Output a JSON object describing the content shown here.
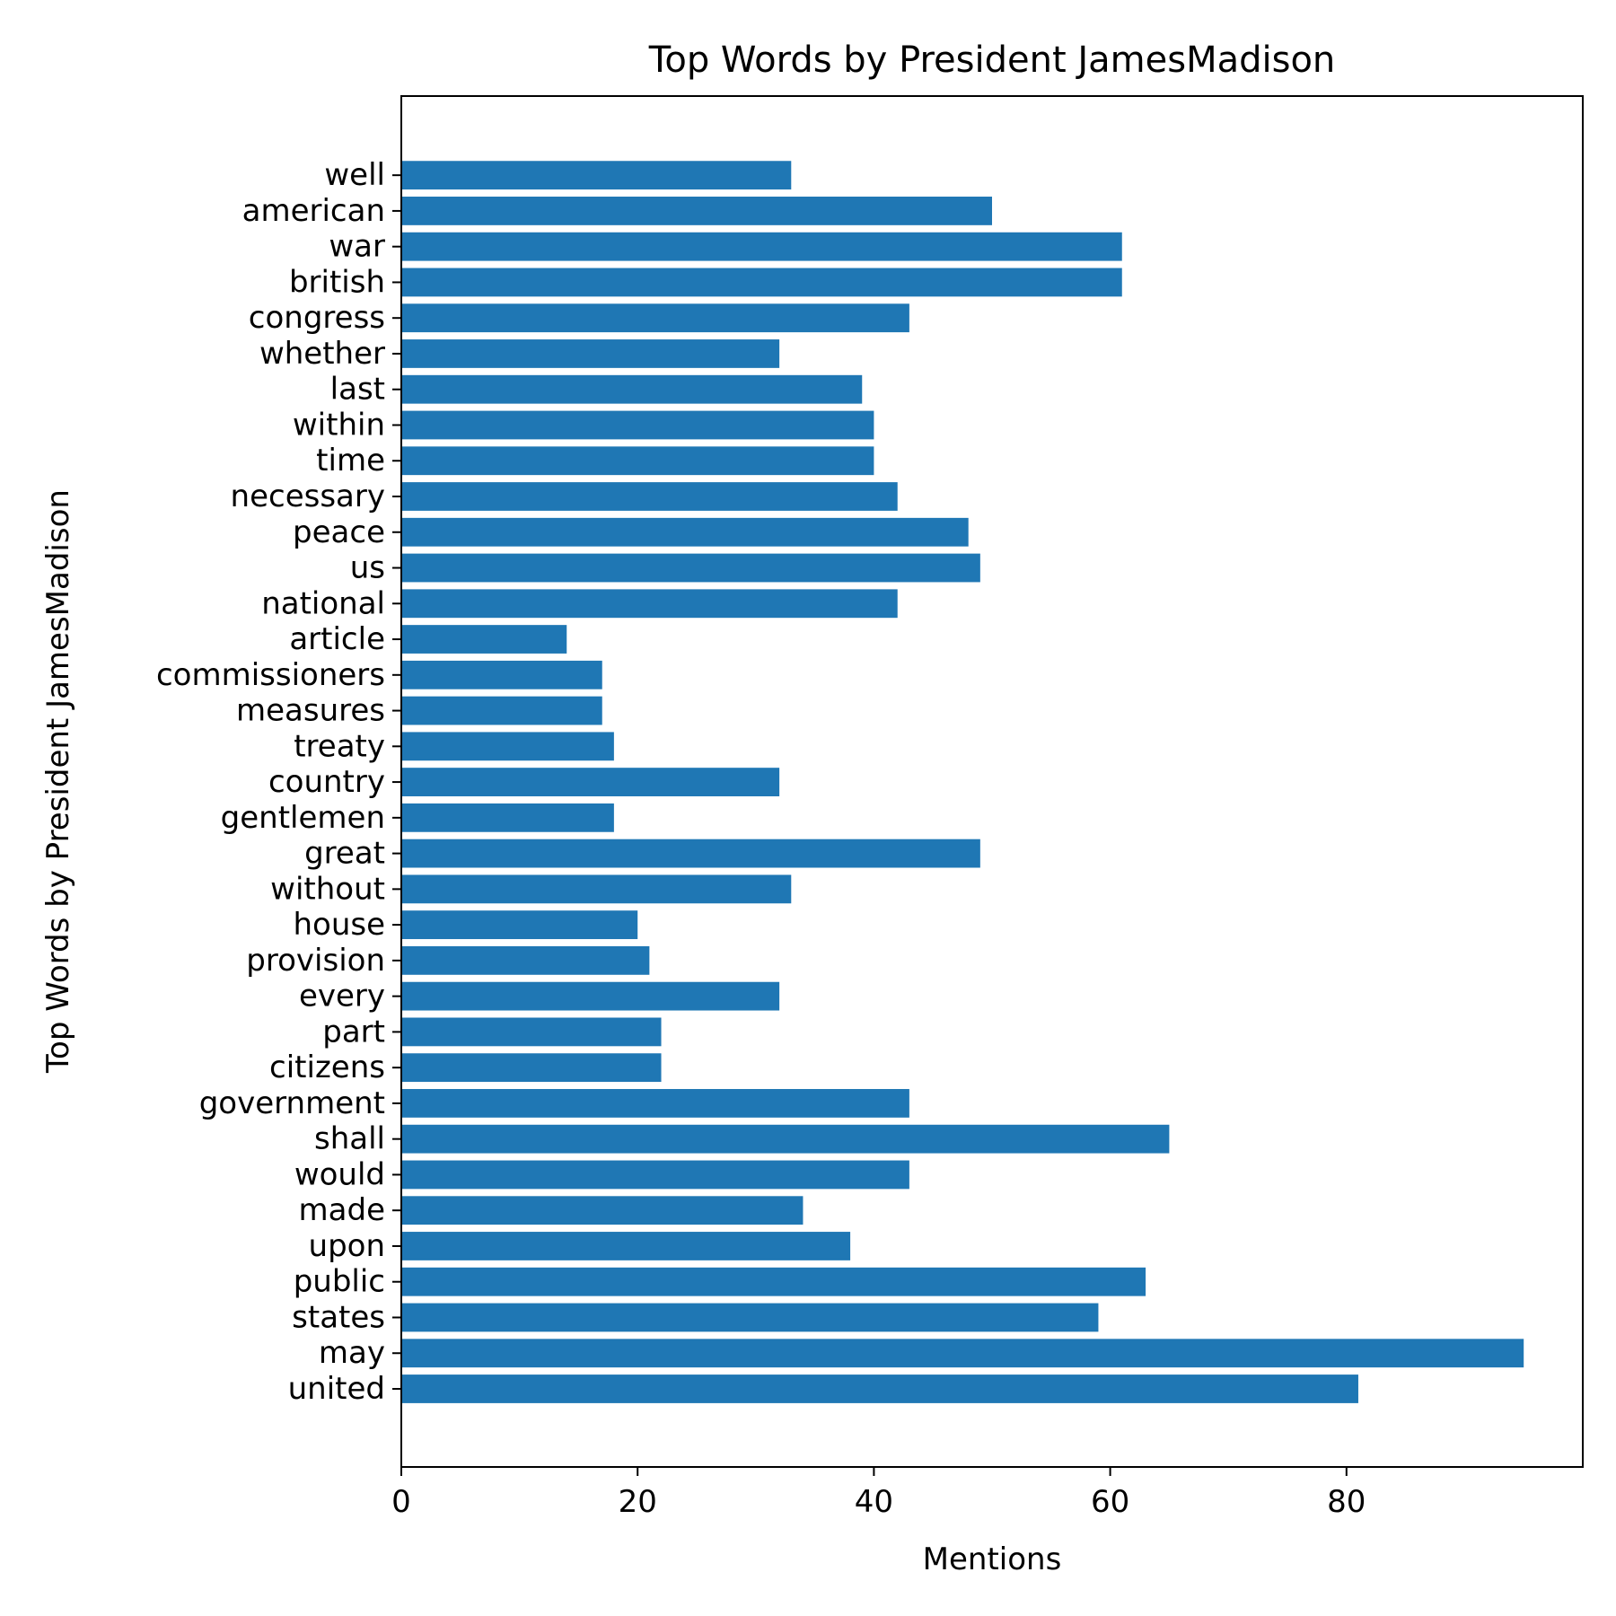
{
  "chart_data": {
    "type": "bar",
    "orientation": "horizontal",
    "title": "Top Words by President JamesMadison",
    "xlabel": "Mentions",
    "ylabel": "Top Words by President JamesMadison",
    "xlim": [
      0,
      100
    ],
    "xticks": [
      0,
      20,
      40,
      60,
      80
    ],
    "grid": false,
    "legend": "none",
    "bar_color": "#1f77b4",
    "categories": [
      "united",
      "may",
      "states",
      "public",
      "upon",
      "made",
      "would",
      "shall",
      "government",
      "citizens",
      "part",
      "every",
      "provision",
      "house",
      "without",
      "great",
      "gentlemen",
      "country",
      "treaty",
      "measures",
      "commissioners",
      "article",
      "national",
      "us",
      "peace",
      "necessary",
      "time",
      "within",
      "last",
      "whether",
      "congress",
      "british",
      "war",
      "american",
      "well"
    ],
    "values": [
      81,
      95,
      59,
      63,
      38,
      34,
      43,
      65,
      43,
      22,
      22,
      32,
      21,
      20,
      33,
      49,
      18,
      32,
      18,
      17,
      17,
      14,
      42,
      49,
      48,
      42,
      40,
      40,
      39,
      32,
      43,
      61,
      61,
      50,
      33
    ]
  }
}
